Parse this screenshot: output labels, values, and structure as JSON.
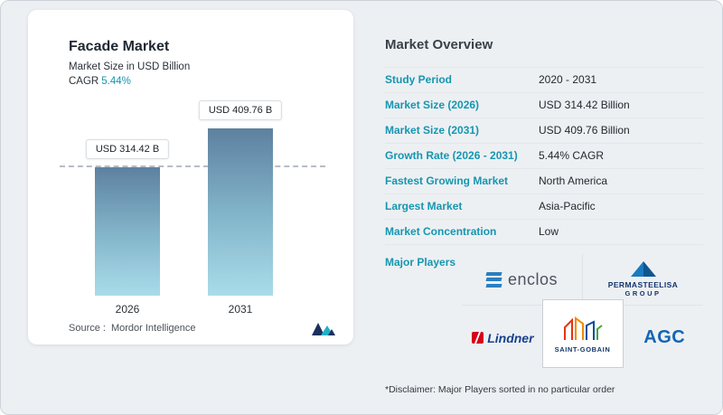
{
  "chart_card": {
    "title": "Facade Market",
    "subtitle": "Market Size in USD Billion",
    "cagr_label": "CAGR",
    "cagr_value": "5.44%",
    "source_label": "Source :",
    "source_value": "Mordor Intelligence"
  },
  "chart_data": {
    "type": "bar",
    "title": "Facade Market",
    "ylabel": "Market Size in USD Billion",
    "categories": [
      "2026",
      "2031"
    ],
    "values": [
      314.42,
      409.76
    ],
    "labels": [
      "USD 314.42 B",
      "USD 409.76 B"
    ],
    "reference_line": 314.42,
    "ylim": [
      0,
      450
    ],
    "grid": false,
    "legend": "none",
    "bar_gradient": [
      "#5d81a0",
      "#a9dcea"
    ]
  },
  "overview": {
    "title": "Market Overview",
    "rows": [
      {
        "label": "Study Period",
        "value": "2020 - 2031"
      },
      {
        "label": "Market Size (2026)",
        "value": "USD 314.42 Billion"
      },
      {
        "label": "Market Size (2031)",
        "value": "USD 409.76 Billion"
      },
      {
        "label": "Growth Rate (2026 - 2031)",
        "value": "5.44% CAGR"
      },
      {
        "label": "Fastest Growing Market",
        "value": "North America"
      },
      {
        "label": "Largest Market",
        "value": "Asia-Pacific"
      },
      {
        "label": "Market Concentration",
        "value": "Low"
      }
    ],
    "major_players_label": "Major Players",
    "players": {
      "enclos": "enclos",
      "permasteelisa_line1": "PERMASTEELISA",
      "permasteelisa_line2": "GROUP",
      "lindner": "Lindner",
      "saint_gobain": "SAINT-GOBAIN",
      "agc": "AGC"
    },
    "disclaimer": "*Disclaimer: Major Players sorted in no particular order"
  },
  "colors": {
    "accent_teal": "#1596b0",
    "bar_top": "#5d81a0",
    "bar_bottom": "#a9dcea",
    "background": "#edf0f3"
  }
}
